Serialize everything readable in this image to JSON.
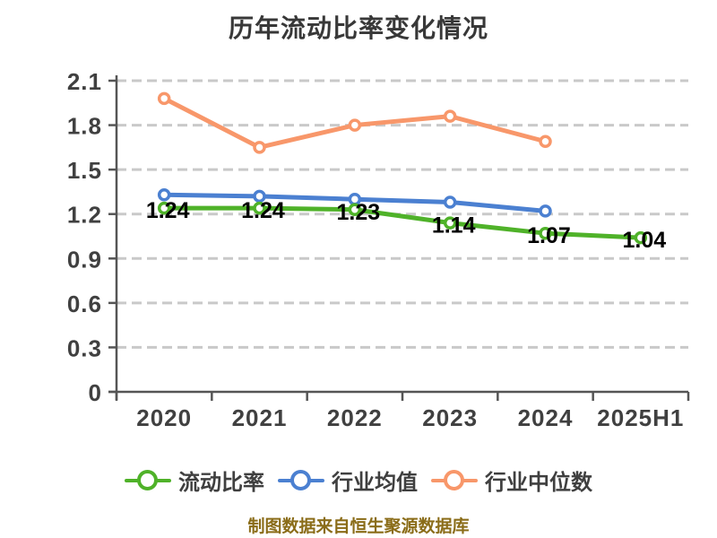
{
  "page": {
    "title": "历年流动比率变化情况",
    "footer": "制图数据来自恒生聚源数据库"
  },
  "chart_data": {
    "type": "line",
    "title": "历年流动比率变化情况",
    "categories": [
      "2020",
      "2021",
      "2022",
      "2023",
      "2024",
      "2025H1"
    ],
    "series": [
      {
        "name": "流动比率",
        "color": "#4fb229",
        "values": [
          1.24,
          1.24,
          1.23,
          1.14,
          1.07,
          1.04
        ],
        "point_labels": [
          "1.24",
          "1.24",
          "1.23",
          "1.14",
          "1.07",
          "1.04"
        ]
      },
      {
        "name": "行业均值",
        "color": "#4b80d1",
        "values": [
          1.33,
          1.32,
          1.3,
          1.28,
          1.22,
          null
        ]
      },
      {
        "name": "行业中位数",
        "color": "#f8976a",
        "values": [
          1.98,
          1.65,
          1.8,
          1.86,
          1.69,
          null
        ]
      }
    ],
    "ylim": [
      0,
      2.1
    ],
    "ytick_labels": [
      "0",
      "0.3",
      "0.6",
      "0.9",
      "1.2",
      "1.5",
      "1.8",
      "2.1"
    ],
    "grid": "dashed-horizontal",
    "legend_position": "bottom",
    "marker_style": "white-filled-circle",
    "colors": {
      "axis": "#555555",
      "grid": "#c9c9c9",
      "tick_label": "#404040",
      "title": "#383838",
      "data_label": "#000000",
      "footer": "#8a6c18",
      "background": "#ffffff"
    }
  }
}
